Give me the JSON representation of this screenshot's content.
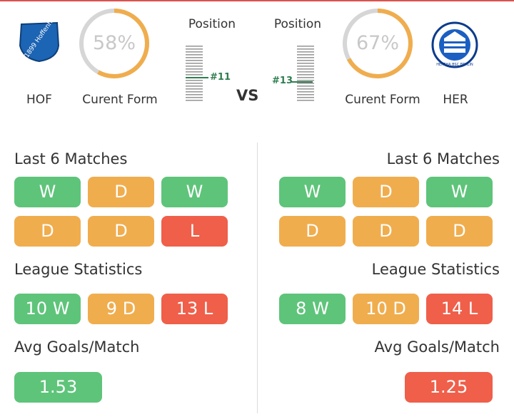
{
  "colors": {
    "win": "#5ec47a",
    "draw": "#f0ad4e",
    "loss": "#ef5f4a",
    "ring_track": "#d6d6d6",
    "ring_fill": "#f0ad4e",
    "position_marker": "#2f7d4f"
  },
  "vs_label": "VS",
  "home": {
    "abbr": "HOF",
    "logo_icon": "hoffenheim-crest-icon",
    "logo_text": "TSG 1899 Hoffenheim",
    "form_percent": 58,
    "form_text": "58%",
    "form_label": "Curent Form",
    "position_label": "Position",
    "position_value": "#11",
    "last6_title": "Last 6 Matches",
    "last6": [
      "W",
      "D",
      "W",
      "D",
      "D",
      "L"
    ],
    "league_title": "League Statistics",
    "league": {
      "wins": "10 W",
      "draws": "9 D",
      "losses": "13 L"
    },
    "avg_title": "Avg Goals/Match",
    "avg_goals": "1.53"
  },
  "away": {
    "abbr": "HER",
    "logo_icon": "hertha-crest-icon",
    "logo_text": "HERTHA BSC BERLIN",
    "form_percent": 67,
    "form_text": "67%",
    "form_label": "Curent Form",
    "position_label": "Position",
    "position_value": "#13",
    "last6_title": "Last 6 Matches",
    "last6": [
      "W",
      "D",
      "W",
      "D",
      "D",
      "D"
    ],
    "league_title": "League Statistics",
    "league": {
      "wins": "8 W",
      "draws": "10 D",
      "losses": "14 L"
    },
    "avg_title": "Avg Goals/Match",
    "avg_goals": "1.25"
  }
}
